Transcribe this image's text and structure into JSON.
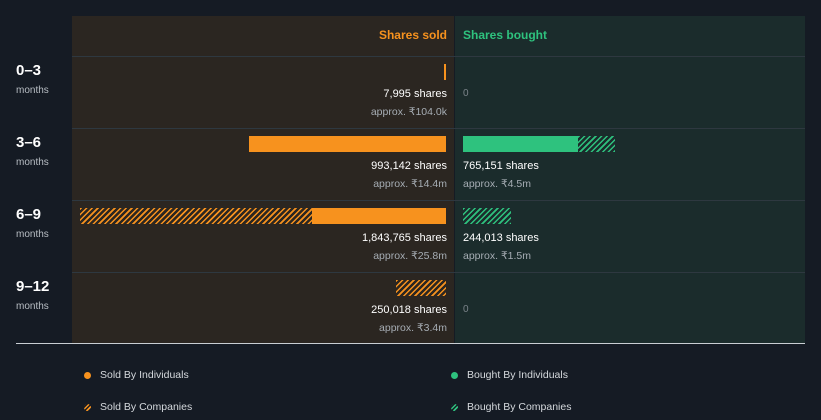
{
  "chart_data": {
    "type": "bar",
    "headers": {
      "sold": "Shares sold",
      "bought": "Shares bought"
    },
    "unit_small": "months",
    "rows": [
      {
        "period": "0–3",
        "sold": {
          "individuals": 7995,
          "companies": 0,
          "shares_label": "7,995 shares",
          "approx": "approx. ₹104.0k"
        },
        "bought": {
          "individuals": 0,
          "companies": 0,
          "shares_label": "0",
          "approx": ""
        }
      },
      {
        "period": "3–6",
        "sold": {
          "individuals": 993142,
          "companies": 0,
          "shares_label": "993,142 shares",
          "approx": "approx. ₹14.4m"
        },
        "bought": {
          "individuals": 580000,
          "companies": 185151,
          "shares_label": "765,151 shares",
          "approx": "approx. ₹4.5m"
        }
      },
      {
        "period": "6–9",
        "sold": {
          "individuals": 673765,
          "companies": 1170000,
          "shares_label": "1,843,765 shares",
          "approx": "approx. ₹25.8m"
        },
        "bought": {
          "individuals": 0,
          "companies": 244013,
          "shares_label": "244,013 shares",
          "approx": "approx. ₹1.5m"
        }
      },
      {
        "period": "9–12",
        "sold": {
          "individuals": 0,
          "companies": 250018,
          "shares_label": "250,018 shares",
          "approx": "approx. ₹3.4m"
        },
        "bought": {
          "individuals": 0,
          "companies": 0,
          "shares_label": "0",
          "approx": ""
        }
      }
    ],
    "legend": {
      "sold_individuals": "Sold By Individuals",
      "sold_companies": "Sold By Companies",
      "bought_individuals": "Bought By Individuals",
      "bought_companies": "Bought By Companies"
    },
    "colors": {
      "sold": "#f7921e",
      "bought": "#2ec27e"
    }
  }
}
